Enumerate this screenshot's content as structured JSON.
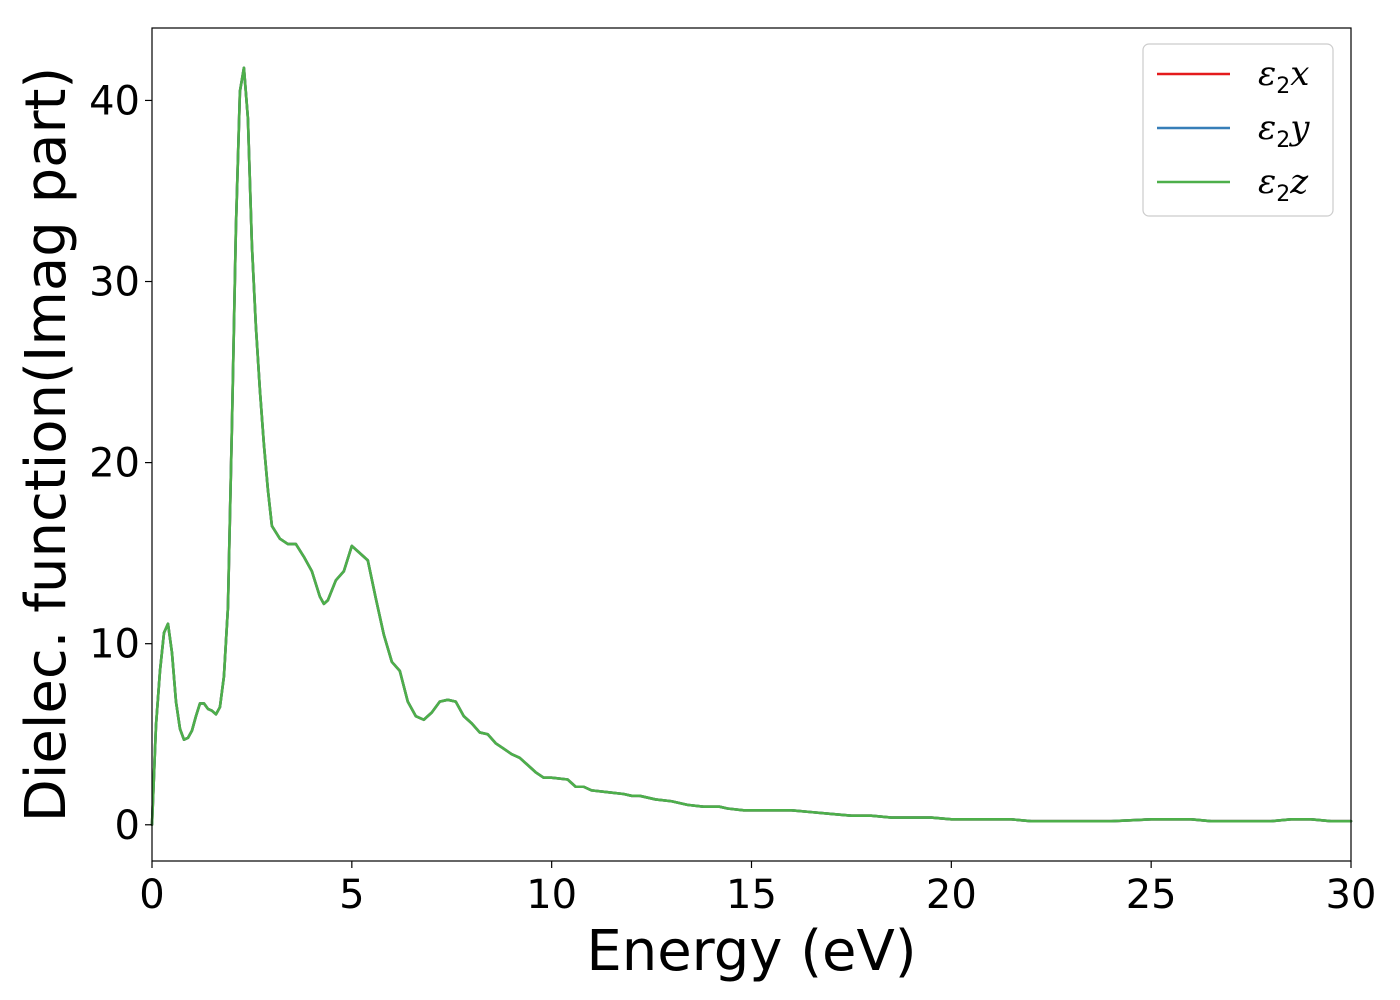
{
  "chart_data": {
    "type": "line",
    "xlabel": "Energy (eV)",
    "ylabel": "Dielec. function(Imag part)",
    "xlim": [
      0,
      30
    ],
    "ylim": [
      -2,
      44
    ],
    "xticks": [
      0,
      5,
      10,
      15,
      20,
      25,
      30
    ],
    "yticks": [
      0,
      10,
      20,
      30,
      40
    ],
    "grid": false,
    "legend_position": "top-right",
    "series": [
      {
        "name": "ε2x",
        "symbol": "ε",
        "sub": "2",
        "axis": "x",
        "color": "#e41a1c",
        "x": [
          0,
          0.1,
          0.2,
          0.3,
          0.4,
          0.5,
          0.6,
          0.7,
          0.8,
          0.9,
          1.0,
          1.1,
          1.2,
          1.3,
          1.4,
          1.5,
          1.6,
          1.7,
          1.8,
          1.9,
          2.0,
          2.1,
          2.2,
          2.3,
          2.4,
          2.5,
          2.6,
          2.7,
          2.8,
          2.9,
          3.0,
          3.2,
          3.4,
          3.6,
          3.8,
          4.0,
          4.2,
          4.3,
          4.4,
          4.6,
          4.8,
          5.0,
          5.2,
          5.4,
          5.6,
          5.8,
          6.0,
          6.2,
          6.4,
          6.6,
          6.8,
          7.0,
          7.2,
          7.4,
          7.6,
          7.8,
          8.0,
          8.2,
          8.4,
          8.6,
          8.8,
          9.0,
          9.2,
          9.4,
          9.6,
          9.8,
          10.0,
          10.4,
          10.6,
          10.8,
          11.0,
          11.4,
          11.8,
          12.0,
          12.2,
          12.6,
          13.0,
          13.4,
          13.8,
          14.0,
          14.2,
          14.4,
          14.8,
          15.2,
          15.6,
          16.0,
          16.5,
          17.0,
          17.5,
          18.0,
          18.5,
          19.0,
          19.5,
          20.0,
          20.5,
          21.0,
          21.5,
          22.0,
          23.0,
          24.0,
          25.0,
          25.5,
          26.0,
          26.5,
          27.0,
          28.0,
          28.5,
          29.0,
          29.5,
          30.0
        ],
        "y": [
          0,
          5.5,
          8.5,
          10.6,
          11.1,
          9.5,
          6.8,
          5.3,
          4.7,
          4.8,
          5.2,
          6.0,
          6.7,
          6.7,
          6.4,
          6.3,
          6.1,
          6.5,
          8.2,
          12.0,
          22.0,
          33.0,
          40.5,
          41.8,
          39.0,
          32.0,
          27.5,
          24.0,
          21.0,
          18.5,
          16.5,
          15.8,
          15.5,
          15.5,
          14.8,
          14.0,
          12.6,
          12.2,
          12.4,
          13.5,
          14.0,
          15.4,
          15.0,
          14.6,
          12.5,
          10.5,
          9.0,
          8.5,
          6.8,
          6.0,
          5.8,
          6.2,
          6.8,
          6.9,
          6.8,
          6.0,
          5.6,
          5.1,
          5.0,
          4.5,
          4.2,
          3.9,
          3.7,
          3.3,
          2.9,
          2.6,
          2.6,
          2.5,
          2.1,
          2.1,
          1.9,
          1.8,
          1.7,
          1.6,
          1.6,
          1.4,
          1.3,
          1.1,
          1.0,
          1.0,
          1.0,
          0.9,
          0.8,
          0.8,
          0.8,
          0.8,
          0.7,
          0.6,
          0.5,
          0.5,
          0.4,
          0.4,
          0.4,
          0.3,
          0.3,
          0.3,
          0.3,
          0.2,
          0.2,
          0.2,
          0.3,
          0.3,
          0.3,
          0.2,
          0.2,
          0.2,
          0.3,
          0.3,
          0.2,
          0.2
        ]
      },
      {
        "name": "ε2y",
        "symbol": "ε",
        "sub": "2",
        "axis": "y",
        "color": "#377eb8",
        "x": [
          0,
          0.1,
          0.2,
          0.3,
          0.4,
          0.5,
          0.6,
          0.7,
          0.8,
          0.9,
          1.0,
          1.1,
          1.2,
          1.3,
          1.4,
          1.5,
          1.6,
          1.7,
          1.8,
          1.9,
          2.0,
          2.1,
          2.2,
          2.3,
          2.4,
          2.5,
          2.6,
          2.7,
          2.8,
          2.9,
          3.0,
          3.2,
          3.4,
          3.6,
          3.8,
          4.0,
          4.2,
          4.3,
          4.4,
          4.6,
          4.8,
          5.0,
          5.2,
          5.4,
          5.6,
          5.8,
          6.0,
          6.2,
          6.4,
          6.6,
          6.8,
          7.0,
          7.2,
          7.4,
          7.6,
          7.8,
          8.0,
          8.2,
          8.4,
          8.6,
          8.8,
          9.0,
          9.2,
          9.4,
          9.6,
          9.8,
          10.0,
          10.4,
          10.6,
          10.8,
          11.0,
          11.4,
          11.8,
          12.0,
          12.2,
          12.6,
          13.0,
          13.4,
          13.8,
          14.0,
          14.2,
          14.4,
          14.8,
          15.2,
          15.6,
          16.0,
          16.5,
          17.0,
          17.5,
          18.0,
          18.5,
          19.0,
          19.5,
          20.0,
          20.5,
          21.0,
          21.5,
          22.0,
          23.0,
          24.0,
          25.0,
          25.5,
          26.0,
          26.5,
          27.0,
          28.0,
          28.5,
          29.0,
          29.5,
          30.0
        ],
        "y": [
          0,
          5.5,
          8.5,
          10.6,
          11.1,
          9.5,
          6.8,
          5.3,
          4.7,
          4.8,
          5.2,
          6.0,
          6.7,
          6.7,
          6.4,
          6.3,
          6.1,
          6.5,
          8.2,
          12.0,
          22.0,
          33.0,
          40.5,
          41.8,
          39.0,
          32.0,
          27.5,
          24.0,
          21.0,
          18.5,
          16.5,
          15.8,
          15.5,
          15.5,
          14.8,
          14.0,
          12.6,
          12.2,
          12.4,
          13.5,
          14.0,
          15.4,
          15.0,
          14.6,
          12.5,
          10.5,
          9.0,
          8.5,
          6.8,
          6.0,
          5.8,
          6.2,
          6.8,
          6.9,
          6.8,
          6.0,
          5.6,
          5.1,
          5.0,
          4.5,
          4.2,
          3.9,
          3.7,
          3.3,
          2.9,
          2.6,
          2.6,
          2.5,
          2.1,
          2.1,
          1.9,
          1.8,
          1.7,
          1.6,
          1.6,
          1.4,
          1.3,
          1.1,
          1.0,
          1.0,
          1.0,
          0.9,
          0.8,
          0.8,
          0.8,
          0.8,
          0.7,
          0.6,
          0.5,
          0.5,
          0.4,
          0.4,
          0.4,
          0.3,
          0.3,
          0.3,
          0.3,
          0.2,
          0.2,
          0.2,
          0.3,
          0.3,
          0.3,
          0.2,
          0.2,
          0.2,
          0.3,
          0.3,
          0.2,
          0.2
        ]
      },
      {
        "name": "ε2z",
        "symbol": "ε",
        "sub": "2",
        "axis": "z",
        "color": "#4daf4a",
        "x": [
          0,
          0.1,
          0.2,
          0.3,
          0.4,
          0.5,
          0.6,
          0.7,
          0.8,
          0.9,
          1.0,
          1.1,
          1.2,
          1.3,
          1.4,
          1.5,
          1.6,
          1.7,
          1.8,
          1.9,
          2.0,
          2.1,
          2.2,
          2.3,
          2.4,
          2.5,
          2.6,
          2.7,
          2.8,
          2.9,
          3.0,
          3.2,
          3.4,
          3.6,
          3.8,
          4.0,
          4.2,
          4.3,
          4.4,
          4.6,
          4.8,
          5.0,
          5.2,
          5.4,
          5.6,
          5.8,
          6.0,
          6.2,
          6.4,
          6.6,
          6.8,
          7.0,
          7.2,
          7.4,
          7.6,
          7.8,
          8.0,
          8.2,
          8.4,
          8.6,
          8.8,
          9.0,
          9.2,
          9.4,
          9.6,
          9.8,
          10.0,
          10.4,
          10.6,
          10.8,
          11.0,
          11.4,
          11.8,
          12.0,
          12.2,
          12.6,
          13.0,
          13.4,
          13.8,
          14.0,
          14.2,
          14.4,
          14.8,
          15.2,
          15.6,
          16.0,
          16.5,
          17.0,
          17.5,
          18.0,
          18.5,
          19.0,
          19.5,
          20.0,
          20.5,
          21.0,
          21.5,
          22.0,
          23.0,
          24.0,
          25.0,
          25.5,
          26.0,
          26.5,
          27.0,
          28.0,
          28.5,
          29.0,
          29.5,
          30.0
        ],
        "y": [
          0,
          5.5,
          8.5,
          10.6,
          11.1,
          9.5,
          6.8,
          5.3,
          4.7,
          4.8,
          5.2,
          6.0,
          6.7,
          6.7,
          6.4,
          6.3,
          6.1,
          6.5,
          8.2,
          12.0,
          22.0,
          33.0,
          40.5,
          41.8,
          39.0,
          32.0,
          27.5,
          24.0,
          21.0,
          18.5,
          16.5,
          15.8,
          15.5,
          15.5,
          14.8,
          14.0,
          12.6,
          12.2,
          12.4,
          13.5,
          14.0,
          15.4,
          15.0,
          14.6,
          12.5,
          10.5,
          9.0,
          8.5,
          6.8,
          6.0,
          5.8,
          6.2,
          6.8,
          6.9,
          6.8,
          6.0,
          5.6,
          5.1,
          5.0,
          4.5,
          4.2,
          3.9,
          3.7,
          3.3,
          2.9,
          2.6,
          2.6,
          2.5,
          2.1,
          2.1,
          1.9,
          1.8,
          1.7,
          1.6,
          1.6,
          1.4,
          1.3,
          1.1,
          1.0,
          1.0,
          1.0,
          0.9,
          0.8,
          0.8,
          0.8,
          0.8,
          0.7,
          0.6,
          0.5,
          0.5,
          0.4,
          0.4,
          0.4,
          0.3,
          0.3,
          0.3,
          0.3,
          0.2,
          0.2,
          0.2,
          0.3,
          0.3,
          0.3,
          0.2,
          0.2,
          0.2,
          0.3,
          0.3,
          0.2,
          0.2
        ]
      }
    ]
  }
}
